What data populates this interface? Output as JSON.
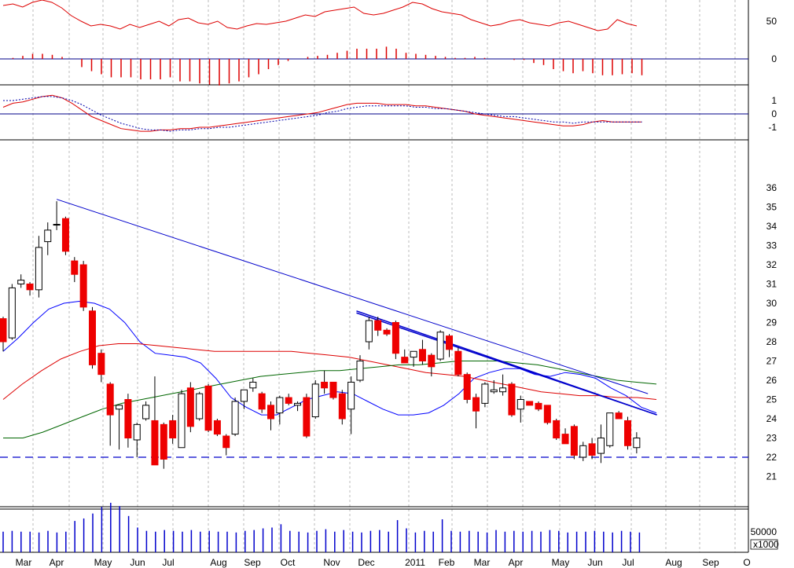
{
  "chart_data": [
    {
      "panel": "oscillator",
      "type": "line",
      "y_ticks": [
        50,
        0
      ],
      "x": [
        "Mar",
        "",
        "",
        "Apr",
        "",
        "",
        "",
        "May",
        "",
        "",
        "",
        "Jun",
        "",
        "",
        "",
        "Jul",
        "",
        "",
        "",
        "Aug",
        "",
        "",
        "",
        "Sep",
        "",
        "",
        "",
        "Oct",
        "",
        "",
        "",
        "Nov",
        "",
        "",
        "",
        "Dec",
        "",
        "",
        "",
        "2011",
        "",
        "",
        "",
        "Feb",
        "",
        "",
        "",
        "Mar",
        "",
        "",
        "",
        "Apr",
        "",
        "",
        "",
        "May",
        "",
        "",
        "",
        "Jun",
        "",
        "",
        "",
        "Jul",
        "",
        ""
      ],
      "series": [
        {
          "values": [
            68,
            70,
            66,
            72,
            75,
            72,
            65,
            55,
            48,
            42,
            44,
            42,
            38,
            44,
            40,
            44,
            48,
            42,
            50,
            52,
            46,
            44,
            48,
            40,
            38,
            42,
            45,
            44,
            46,
            48,
            52,
            56,
            54,
            60,
            62,
            64,
            66,
            58,
            56,
            58,
            62,
            66,
            72,
            70,
            64,
            60,
            58,
            56,
            50,
            46,
            42,
            44,
            48,
            50,
            46,
            44,
            42,
            46,
            48,
            44,
            40,
            36,
            38,
            50,
            45,
            42
          ]
        }
      ]
    },
    {
      "panel": "momentum-histogram",
      "type": "bar",
      "y_ticks": [
        0
      ],
      "values": [
        0,
        1,
        3,
        5,
        5,
        4,
        2,
        0,
        -8,
        -12,
        -15,
        -18,
        -18,
        -18,
        -20,
        -20,
        -20,
        -18,
        -22,
        -22,
        -24,
        -25,
        -26,
        -24,
        -22,
        -18,
        -15,
        -10,
        -6,
        -2,
        0,
        2,
        3,
        4,
        6,
        8,
        10,
        10,
        10,
        12,
        10,
        6,
        5,
        4,
        3,
        2,
        1,
        1,
        2,
        1,
        0,
        0,
        -1,
        -1,
        -4,
        -6,
        -10,
        -12,
        -14,
        -12,
        -14,
        -16,
        -16,
        -15,
        -14,
        -16
      ]
    },
    {
      "panel": "macd",
      "type": "line",
      "y_ticks": [
        1,
        0,
        -1
      ],
      "series": [
        {
          "style": "solid",
          "values": [
            0.5,
            0.8,
            0.9,
            1.1,
            1.3,
            1.4,
            1.2,
            0.8,
            0.3,
            -0.2,
            -0.5,
            -0.8,
            -1.1,
            -1.2,
            -1.3,
            -1.3,
            -1.2,
            -1.2,
            -1.1,
            -1.1,
            -1.0,
            -1.0,
            -0.9,
            -0.8,
            -0.7,
            -0.6,
            -0.5,
            -0.4,
            -0.3,
            -0.2,
            -0.1,
            0.0,
            0.1,
            0.3,
            0.5,
            0.7,
            0.8,
            0.8,
            0.8,
            0.7,
            0.7,
            0.7,
            0.6,
            0.6,
            0.5,
            0.4,
            0.3,
            0.2,
            0.0,
            -0.1,
            -0.2,
            -0.3,
            -0.4,
            -0.5,
            -0.6,
            -0.7,
            -0.8,
            -0.9,
            -0.9,
            -0.8,
            -0.6,
            -0.5,
            -0.6,
            -0.6,
            -0.6,
            -0.6
          ]
        },
        {
          "style": "dotted",
          "values": [
            1.0,
            1.0,
            1.1,
            1.2,
            1.3,
            1.3,
            1.2,
            1.0,
            0.7,
            0.3,
            -0.1,
            -0.4,
            -0.7,
            -0.9,
            -1.1,
            -1.2,
            -1.2,
            -1.3,
            -1.2,
            -1.2,
            -1.1,
            -1.1,
            -1.0,
            -1.0,
            -0.9,
            -0.8,
            -0.7,
            -0.6,
            -0.5,
            -0.4,
            -0.3,
            -0.2,
            -0.1,
            0.1,
            0.2,
            0.4,
            0.5,
            0.6,
            0.6,
            0.6,
            0.6,
            0.6,
            0.5,
            0.5,
            0.4,
            0.4,
            0.3,
            0.2,
            0.1,
            0.0,
            -0.1,
            -0.2,
            -0.2,
            -0.3,
            -0.4,
            -0.5,
            -0.6,
            -0.6,
            -0.7,
            -0.6,
            -0.6,
            -0.6,
            -0.6,
            -0.6,
            -0.6,
            -0.6
          ]
        }
      ]
    },
    {
      "panel": "price",
      "type": "candlestick",
      "y_ticks": [
        36,
        35,
        34,
        33,
        32,
        31,
        30,
        29,
        28,
        27,
        26,
        25,
        24,
        23,
        22,
        21
      ],
      "candles": [
        {
          "o": 29.2,
          "h": 29.3,
          "l": 27.5,
          "c": 28.0
        },
        {
          "o": 28.2,
          "h": 31.0,
          "l": 28.1,
          "c": 30.8
        },
        {
          "o": 31.0,
          "h": 31.5,
          "l": 30.8,
          "c": 31.2
        },
        {
          "o": 31.0,
          "h": 31.1,
          "l": 30.4,
          "c": 30.7
        },
        {
          "o": 30.7,
          "h": 33.5,
          "l": 30.3,
          "c": 32.9
        },
        {
          "o": 33.2,
          "h": 34.2,
          "l": 32.5,
          "c": 33.8
        },
        {
          "o": 34.1,
          "h": 35.3,
          "l": 33.8,
          "c": 34.1
        },
        {
          "o": 34.4,
          "h": 34.5,
          "l": 32.5,
          "c": 32.7
        },
        {
          "o": 32.2,
          "h": 32.4,
          "l": 31.1,
          "c": 31.5
        },
        {
          "o": 32.0,
          "h": 32.2,
          "l": 29.6,
          "c": 29.8
        },
        {
          "o": 29.6,
          "h": 29.8,
          "l": 26.6,
          "c": 26.8
        },
        {
          "o": 27.4,
          "h": 27.6,
          "l": 25.9,
          "c": 26.3
        },
        {
          "o": 25.8,
          "h": 25.9,
          "l": 22.6,
          "c": 24.2
        },
        {
          "o": 24.5,
          "h": 24.7,
          "l": 22.4,
          "c": 24.7
        },
        {
          "o": 25.0,
          "h": 25.3,
          "l": 22.5,
          "c": 23.0
        },
        {
          "o": 22.9,
          "h": 23.8,
          "l": 22.0,
          "c": 23.7
        },
        {
          "o": 24.0,
          "h": 24.9,
          "l": 23.9,
          "c": 24.7
        },
        {
          "o": 23.9,
          "h": 26.2,
          "l": 21.6,
          "c": 21.6
        },
        {
          "o": 23.7,
          "h": 23.8,
          "l": 21.4,
          "c": 21.9
        },
        {
          "o": 23.9,
          "h": 24.2,
          "l": 22.7,
          "c": 23.0
        },
        {
          "o": 22.5,
          "h": 25.5,
          "l": 22.5,
          "c": 25.3
        },
        {
          "o": 25.6,
          "h": 25.9,
          "l": 23.3,
          "c": 23.6
        },
        {
          "o": 24.0,
          "h": 25.4,
          "l": 23.9,
          "c": 25.3
        },
        {
          "o": 25.7,
          "h": 25.8,
          "l": 23.3,
          "c": 23.4
        },
        {
          "o": 23.9,
          "h": 24.0,
          "l": 23.1,
          "c": 23.2
        },
        {
          "o": 23.1,
          "h": 23.2,
          "l": 22.1,
          "c": 22.5
        },
        {
          "o": 23.2,
          "h": 25.1,
          "l": 23.1,
          "c": 24.9
        },
        {
          "o": 24.9,
          "h": 25.5,
          "l": 24.5,
          "c": 25.5
        },
        {
          "o": 25.6,
          "h": 26.1,
          "l": 25.4,
          "c": 25.9
        },
        {
          "o": 25.3,
          "h": 25.4,
          "l": 24.3,
          "c": 24.5
        },
        {
          "o": 24.7,
          "h": 24.9,
          "l": 23.4,
          "c": 24.0
        },
        {
          "o": 24.3,
          "h": 25.2,
          "l": 23.7,
          "c": 25.1
        },
        {
          "o": 25.1,
          "h": 25.3,
          "l": 24.7,
          "c": 24.8
        },
        {
          "o": 24.7,
          "h": 24.9,
          "l": 24.4,
          "c": 24.8
        },
        {
          "o": 25.1,
          "h": 25.3,
          "l": 23.0,
          "c": 23.1
        },
        {
          "o": 24.1,
          "h": 26.0,
          "l": 24.0,
          "c": 25.8
        },
        {
          "o": 25.9,
          "h": 26.5,
          "l": 25.3,
          "c": 25.6
        },
        {
          "o": 25.9,
          "h": 25.9,
          "l": 25.0,
          "c": 25.1
        },
        {
          "o": 25.3,
          "h": 25.5,
          "l": 23.7,
          "c": 24.0
        },
        {
          "o": 24.5,
          "h": 26.2,
          "l": 23.2,
          "c": 25.9
        },
        {
          "o": 26.0,
          "h": 27.3,
          "l": 25.9,
          "c": 27.0
        },
        {
          "o": 28.0,
          "h": 29.3,
          "l": 27.6,
          "c": 29.1
        },
        {
          "o": 29.1,
          "h": 29.3,
          "l": 28.3,
          "c": 28.6
        },
        {
          "o": 28.6,
          "h": 28.7,
          "l": 28.3,
          "c": 28.4
        },
        {
          "o": 29.0,
          "h": 29.1,
          "l": 27.1,
          "c": 27.4
        },
        {
          "o": 27.2,
          "h": 27.6,
          "l": 26.9,
          "c": 26.9
        },
        {
          "o": 27.2,
          "h": 27.5,
          "l": 26.7,
          "c": 27.5
        },
        {
          "o": 27.6,
          "h": 28.1,
          "l": 26.8,
          "c": 27.0
        },
        {
          "o": 27.3,
          "h": 27.4,
          "l": 26.2,
          "c": 26.7
        },
        {
          "o": 27.1,
          "h": 28.6,
          "l": 27.0,
          "c": 28.5
        },
        {
          "o": 28.3,
          "h": 28.4,
          "l": 27.2,
          "c": 27.6
        },
        {
          "o": 27.5,
          "h": 27.7,
          "l": 26.2,
          "c": 26.3
        },
        {
          "o": 26.3,
          "h": 26.4,
          "l": 24.8,
          "c": 25.0
        },
        {
          "o": 25.1,
          "h": 25.3,
          "l": 23.5,
          "c": 24.4
        },
        {
          "o": 24.8,
          "h": 25.9,
          "l": 24.6,
          "c": 25.8
        },
        {
          "o": 25.4,
          "h": 26.0,
          "l": 25.3,
          "c": 25.5
        },
        {
          "o": 25.4,
          "h": 26.3,
          "l": 25.2,
          "c": 25.6
        },
        {
          "o": 25.8,
          "h": 25.9,
          "l": 24.1,
          "c": 24.2
        },
        {
          "o": 24.5,
          "h": 25.2,
          "l": 23.8,
          "c": 25.0
        },
        {
          "o": 24.9,
          "h": 24.9,
          "l": 24.7,
          "c": 24.7
        },
        {
          "o": 24.8,
          "h": 24.9,
          "l": 24.4,
          "c": 24.5
        },
        {
          "o": 24.7,
          "h": 24.7,
          "l": 23.7,
          "c": 23.8
        },
        {
          "o": 23.9,
          "h": 24.0,
          "l": 22.9,
          "c": 23.0
        },
        {
          "o": 23.2,
          "h": 23.5,
          "l": 22.7,
          "c": 22.7
        },
        {
          "o": 23.6,
          "h": 23.7,
          "l": 21.9,
          "c": 22.1
        },
        {
          "o": 22.0,
          "h": 22.8,
          "l": 21.8,
          "c": 22.6
        },
        {
          "o": 22.7,
          "h": 23.0,
          "l": 21.9,
          "c": 22.1
        },
        {
          "o": 22.2,
          "h": 23.7,
          "l": 21.7,
          "c": 23.0
        },
        {
          "o": 22.6,
          "h": 24.3,
          "l": 22.5,
          "c": 24.3
        },
        {
          "o": 24.3,
          "h": 24.4,
          "l": 24.0,
          "c": 24.0
        },
        {
          "o": 23.9,
          "h": 24.1,
          "l": 22.4,
          "c": 22.6
        },
        {
          "o": 22.5,
          "h": 23.3,
          "l": 22.2,
          "c": 23.0
        }
      ],
      "moving_averages": [
        {
          "color": "#0000ff",
          "values": [
            27.5,
            28.2,
            29.0,
            29.7,
            30.0,
            30.1,
            30.0,
            29.7,
            29.0,
            28.0,
            27.4,
            27.3,
            27.2,
            26.9,
            26.1,
            25.1,
            24.6,
            24.2,
            24.2,
            24.6,
            25.0,
            25.2,
            25.4,
            25.3,
            24.9,
            24.5,
            24.2,
            24.2,
            24.3,
            24.7,
            25.3,
            26.1,
            26.4,
            26.6,
            26.6,
            26.3,
            26.2,
            26.4,
            26.3,
            26.1,
            25.6,
            25.2,
            24.6,
            24.3
          ]
        },
        {
          "color": "#dd0000",
          "values": [
            25.0,
            25.8,
            26.5,
            27.1,
            27.5,
            27.8,
            27.9,
            27.9,
            27.8,
            27.7,
            27.6,
            27.5,
            27.5,
            27.5,
            27.5,
            27.5,
            27.4,
            27.3,
            27.2,
            27.0,
            26.8,
            26.6,
            26.4,
            26.3,
            26.2,
            26.0,
            25.8,
            25.6,
            25.4,
            25.3,
            25.2,
            25.2,
            25.1,
            25.1,
            25.0
          ]
        },
        {
          "color": "#006600",
          "values": [
            23.0,
            23.0,
            23.3,
            23.7,
            24.1,
            24.5,
            24.8,
            25.0,
            25.2,
            25.4,
            25.6,
            25.8,
            26.0,
            26.2,
            26.3,
            26.4,
            26.5,
            26.5,
            26.6,
            26.7,
            26.8,
            26.8,
            26.9,
            27.0,
            27.0,
            27.0,
            26.9,
            26.8,
            26.6,
            26.4,
            26.2,
            26.0,
            25.9,
            25.8
          ]
        }
      ],
      "trendlines": [
        {
          "from": {
            "t": 6,
            "y": 35.4
          },
          "to": {
            "t": 72,
            "y": 25.3
          }
        },
        {
          "from": {
            "t": 39.6,
            "y": 29.6
          },
          "to": {
            "t": 73,
            "y": 24.2
          }
        },
        {
          "from": {
            "t": 39.6,
            "y": 29.5
          },
          "to": {
            "t": 73,
            "y": 24.2
          }
        }
      ],
      "support_level": 22.0
    },
    {
      "panel": "volume",
      "type": "bar",
      "y_ticks": [
        50000
      ],
      "unit_label": "x1000",
      "values": [
        25000,
        26000,
        25000,
        25000,
        24000,
        26000,
        24000,
        25000,
        38000,
        41000,
        47000,
        55000,
        60000,
        56000,
        44000,
        30000,
        26000,
        25000,
        27000,
        26000,
        25000,
        27000,
        25000,
        26000,
        25000,
        25000,
        24000,
        26000,
        27000,
        29000,
        30000,
        34000,
        26000,
        25000,
        24000,
        26000,
        28000,
        25000,
        27000,
        25000,
        24000,
        26000,
        27000,
        25000,
        39000,
        29000,
        24000,
        26000,
        25000,
        40000,
        26000,
        25000,
        26000,
        25000,
        24000,
        27000,
        25000,
        26000,
        25000,
        26000,
        25000,
        27000,
        26000,
        24000,
        25000,
        25000,
        26000,
        25000,
        24000,
        26000,
        25000,
        24000
      ]
    }
  ],
  "x_axis": {
    "labels": [
      "Mar",
      "Apr",
      "May",
      "Jun",
      "Jul",
      "Aug",
      "Sep",
      "Oct",
      "Nov",
      "Dec",
      "2011",
      "Feb",
      "Mar",
      "Apr",
      "May",
      "Jun",
      "Jul",
      "Aug",
      "Sep",
      "O"
    ]
  },
  "colors": {
    "up_candle": "#ffffff",
    "down_candle": "#ee0000",
    "ma_blue": "#0000ff",
    "ma_red": "#dd0000",
    "ma_green": "#006600",
    "trendline": "#0000cc",
    "volume_bar": "#0000cc",
    "panel_line": "#000000"
  }
}
